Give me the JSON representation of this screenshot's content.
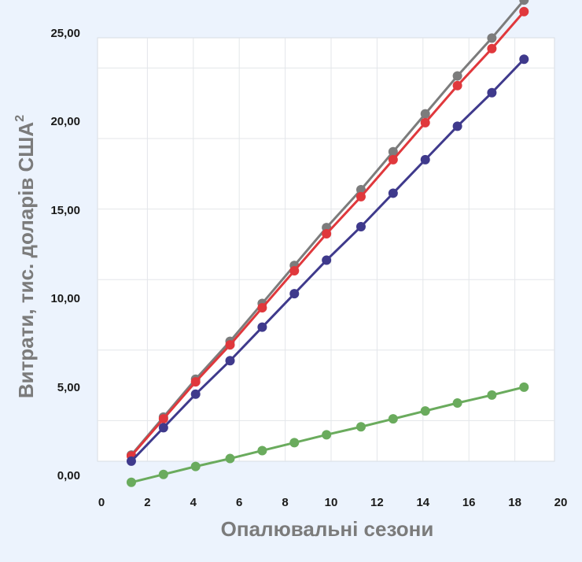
{
  "chart_data": {
    "type": "line",
    "title": "",
    "xlabel": "Опалювальні сезони",
    "ylabel": "Витрати, тис. доларів США",
    "ylabel_superscript": "2",
    "xlim": [
      0,
      20
    ],
    "ylim": [
      0,
      25
    ],
    "x_ticks": [
      "0",
      "2",
      "4",
      "6",
      "8",
      "10",
      "12",
      "14",
      "16",
      "18",
      "20"
    ],
    "y_ticks": [
      "0,00",
      "5,00",
      "10,00",
      "15,00",
      "20,00",
      "25,00"
    ],
    "grid": true,
    "legend": "none",
    "x": [
      1.3,
      2.7,
      4.1,
      5.6,
      7.0,
      8.4,
      9.8,
      11.3,
      12.7,
      14.1,
      15.5,
      17.0,
      18.4
    ],
    "series": [
      {
        "name": "gray",
        "color": "#7c7c7c",
        "values": [
          2.05,
          4.2,
          6.35,
          8.5,
          10.65,
          12.8,
          14.95,
          17.1,
          19.25,
          21.4,
          23.55,
          25.7,
          27.85
        ]
      },
      {
        "name": "red",
        "color": "#e0383c",
        "values": [
          2.0,
          4.1,
          6.2,
          8.3,
          10.4,
          12.5,
          14.6,
          16.7,
          18.8,
          20.9,
          23.0,
          25.1,
          27.2
        ]
      },
      {
        "name": "navy",
        "color": "#3f3a8c",
        "values": [
          1.7,
          3.6,
          5.5,
          7.4,
          9.3,
          11.2,
          13.1,
          15.0,
          16.9,
          18.8,
          20.7,
          22.6,
          24.5
        ]
      },
      {
        "name": "green",
        "color": "#6aab5d",
        "values": [
          0.5,
          0.95,
          1.4,
          1.85,
          2.3,
          2.75,
          3.2,
          3.65,
          4.1,
          4.55,
          5.0,
          5.45,
          5.9
        ]
      }
    ]
  }
}
